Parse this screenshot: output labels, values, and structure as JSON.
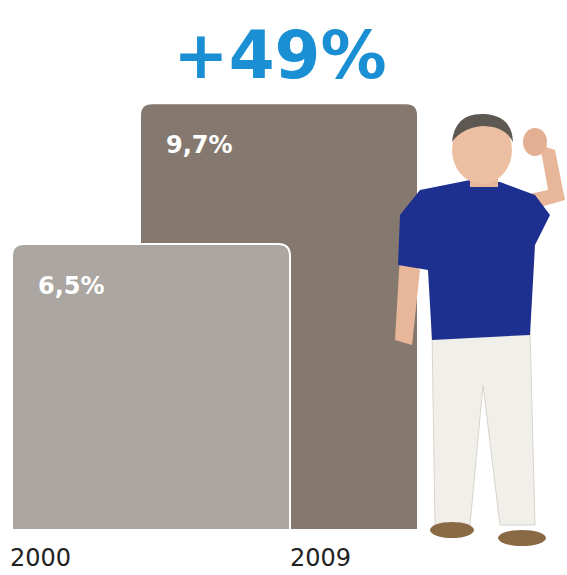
{
  "chart_data": {
    "type": "bar",
    "title": "+49%",
    "categories": [
      "2000",
      "2009"
    ],
    "values": [
      6.5,
      9.7
    ],
    "value_labels": [
      "6,5%",
      "9,7%"
    ],
    "data_labels": true,
    "colors": [
      "#aba6a1",
      "#85796f"
    ],
    "ylim": [
      0,
      10
    ],
    "tick_labels": "x"
  }
}
